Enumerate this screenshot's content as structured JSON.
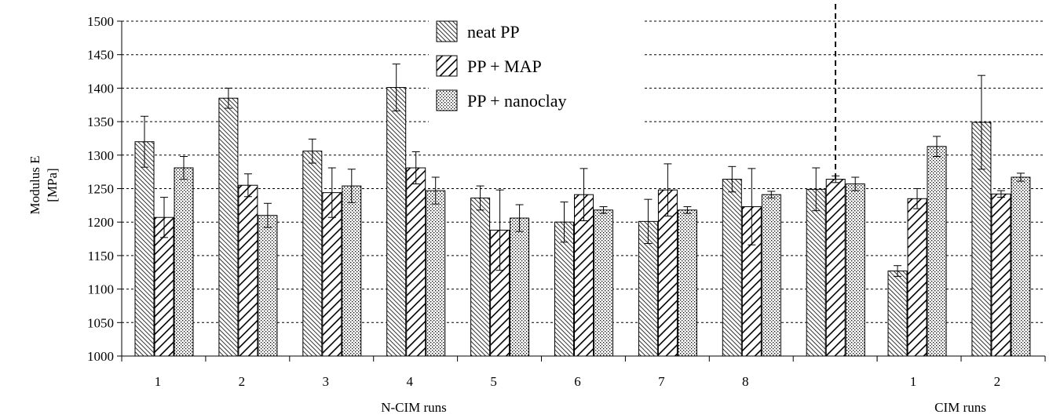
{
  "chart_data": {
    "type": "bar",
    "ylabel": "Modulus E",
    "yunit": "[MPa]",
    "ylim": [
      1000,
      1500
    ],
    "yticks": [
      1000,
      1050,
      1100,
      1150,
      1200,
      1250,
      1300,
      1350,
      1400,
      1450,
      1500
    ],
    "grid": "dashed horizontal",
    "legend_position": "top-center",
    "groups": [
      {
        "label": "N-CIM runs",
        "categories": [
          "1",
          "2",
          "3",
          "4",
          "5",
          "6",
          "7",
          "8",
          ""
        ]
      },
      {
        "label": "CIM runs",
        "categories": [
          "1",
          "2"
        ]
      }
    ],
    "categories": [
      "1",
      "2",
      "3",
      "4",
      "5",
      "6",
      "7",
      "8",
      "",
      "1",
      "2"
    ],
    "series": [
      {
        "name": "neat PP",
        "pattern": "dense-diagonal",
        "values": [
          1320,
          1385,
          1306,
          1401,
          1236,
          1200,
          1201,
          1264,
          1249,
          1127,
          1349
        ],
        "errors": [
          38,
          15,
          18,
          35,
          18,
          30,
          33,
          19,
          32,
          8,
          70
        ]
      },
      {
        "name": "PP + MAP",
        "pattern": "wide-diagonal",
        "values": [
          1207,
          1255,
          1244,
          1281,
          1188,
          1241,
          1248,
          1223,
          1264,
          1235,
          1242
        ],
        "errors": [
          30,
          17,
          37,
          24,
          60,
          39,
          39,
          57,
          5,
          15,
          5
        ]
      },
      {
        "name": "PP + nanoclay",
        "pattern": "dots",
        "values": [
          1281,
          1210,
          1254,
          1247,
          1206,
          1218,
          1218,
          1241,
          1257,
          1313,
          1267
        ],
        "errors": [
          17,
          18,
          25,
          20,
          20,
          5,
          5,
          5,
          10,
          15,
          6
        ]
      }
    ]
  }
}
